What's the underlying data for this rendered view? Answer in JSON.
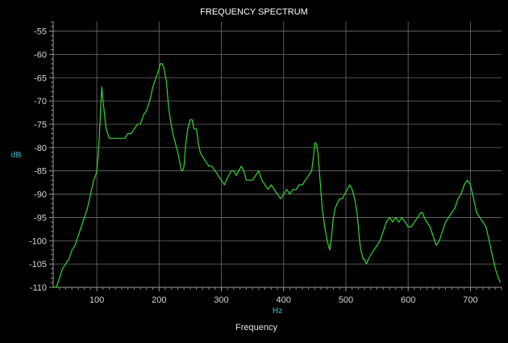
{
  "chart_data": {
    "type": "line",
    "title": "FREQUENCY SPECTRUM",
    "xlabel": "Frequency",
    "x_unit": "Hz",
    "y_unit": "dB",
    "xlim": [
      30,
      750
    ],
    "ylim": [
      -110,
      -53
    ],
    "x_ticks": [
      100,
      200,
      300,
      400,
      500,
      600,
      700
    ],
    "y_ticks": [
      -110,
      -105,
      -100,
      -95,
      -90,
      -85,
      -80,
      -75,
      -70,
      -65,
      -60,
      -55
    ],
    "grid": true,
    "legend": "none",
    "colors": {
      "background": "#000000",
      "grid": "#6e6e6e",
      "line": "#33d633",
      "axis_unit": "#2e8b97",
      "text": "#d6d6d6"
    },
    "series": [
      {
        "x": [
          30,
          35,
          40,
          45,
          50,
          55,
          60,
          65,
          70,
          75,
          80,
          85,
          90,
          95,
          98,
          100,
          102,
          104,
          106,
          108,
          110,
          115,
          120,
          125,
          130,
          135,
          140,
          145,
          150,
          155,
          160,
          165,
          170,
          175,
          180,
          185,
          190,
          195,
          198,
          200,
          202,
          205,
          208,
          212,
          215,
          218,
          222,
          226,
          230,
          233,
          236,
          238,
          240,
          243,
          246,
          250,
          253,
          256,
          260,
          263,
          266,
          270,
          275,
          280,
          285,
          290,
          295,
          300,
          305,
          308,
          312,
          316,
          320,
          324,
          328,
          332,
          336,
          340,
          345,
          350,
          355,
          360,
          365,
          370,
          375,
          380,
          385,
          390,
          395,
          400,
          405,
          410,
          415,
          420,
          425,
          430,
          435,
          440,
          445,
          448,
          450,
          452,
          455,
          458,
          462,
          466,
          470,
          474,
          477,
          480,
          483,
          486,
          490,
          494,
          498,
          502,
          506,
          510,
          514,
          518,
          520,
          522,
          524,
          526,
          528,
          530,
          533,
          536,
          540,
          545,
          550,
          555,
          560,
          565,
          570,
          575,
          580,
          585,
          590,
          595,
          600,
          605,
          610,
          615,
          620,
          623,
          626,
          630,
          635,
          640,
          645,
          650,
          655,
          660,
          665,
          670,
          675,
          680,
          685,
          690,
          695,
          700,
          705,
          710,
          715,
          720,
          725,
          730,
          735,
          740,
          745,
          748
        ],
        "y": [
          -110,
          -110,
          -108,
          -106,
          -105,
          -104,
          -102,
          -101,
          -99,
          -97,
          -95,
          -93,
          -90,
          -87,
          -86,
          -85,
          -82,
          -78,
          -72,
          -67,
          -70,
          -76,
          -78,
          -78,
          -78,
          -78,
          -78,
          -78,
          -77,
          -77,
          -76,
          -75,
          -75,
          -73,
          -72,
          -70,
          -67,
          -65,
          -64,
          -63,
          -62,
          -62,
          -63,
          -66,
          -71,
          -74,
          -77,
          -79,
          -81,
          -83,
          -85,
          -85,
          -84,
          -79,
          -76,
          -74,
          -74,
          -76,
          -76,
          -79,
          -81,
          -82,
          -83,
          -84,
          -84,
          -85,
          -86,
          -87,
          -88,
          -87,
          -86,
          -85,
          -85,
          -86,
          -85,
          -84,
          -85,
          -87,
          -87,
          -87,
          -86,
          -85,
          -87,
          -88,
          -89,
          -88,
          -89,
          -90,
          -91,
          -90,
          -89,
          -90,
          -89,
          -89,
          -88,
          -88,
          -87,
          -86,
          -85,
          -82,
          -79,
          -79,
          -81,
          -86,
          -93,
          -97,
          -100,
          -102,
          -99,
          -95,
          -93,
          -92,
          -91,
          -91,
          -90,
          -89,
          -88,
          -89,
          -91,
          -94,
          -97,
          -100,
          -102,
          -103,
          -104,
          -104,
          -105,
          -104,
          -103,
          -102,
          -101,
          -100,
          -98,
          -96,
          -95,
          -96,
          -95,
          -96,
          -95,
          -96,
          -97,
          -97,
          -96,
          -95,
          -94,
          -94,
          -95,
          -96,
          -97,
          -99,
          -101,
          -100,
          -98,
          -96,
          -95,
          -94,
          -93,
          -91,
          -90,
          -88,
          -87,
          -88,
          -91,
          -94,
          -95,
          -96,
          -97,
          -100,
          -103,
          -106,
          -108,
          -109
        ]
      }
    ]
  }
}
